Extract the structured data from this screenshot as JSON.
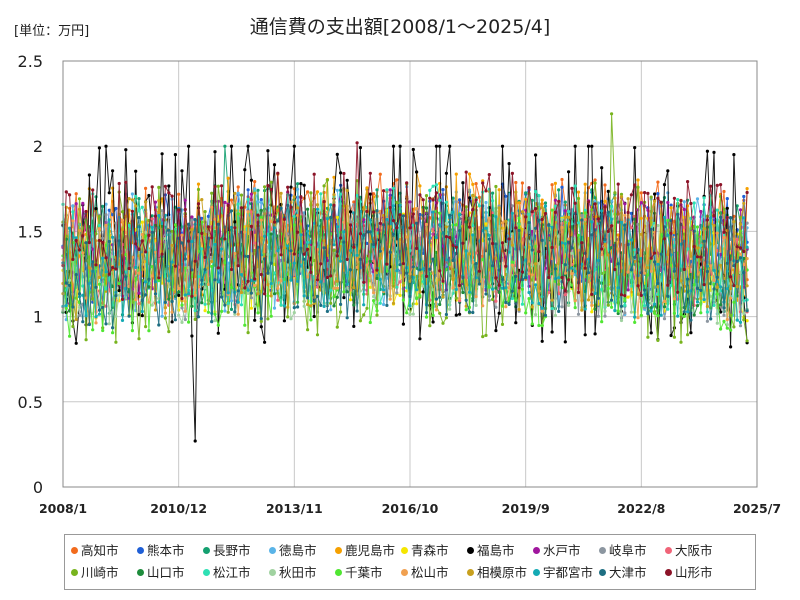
{
  "unit_label": "[単位：万円]",
  "chart_data": {
    "type": "line",
    "title": "通信費の支出額[2008/1～2025/4]",
    "xlabel": "",
    "ylabel": "",
    "x_tick_labels": [
      "2008/1",
      "2010/12",
      "2013/11",
      "2016/10",
      "2019/9",
      "2022/8",
      "2025/7"
    ],
    "y_ticks": [
      0,
      0.5,
      1,
      1.5,
      2,
      2.5
    ],
    "ylim": [
      0,
      2.5
    ],
    "x_range": [
      "2008/1",
      "2025/7"
    ],
    "grid": true,
    "legend_position": "bottom",
    "approximate_series_ranges": [
      {
        "name": "高知市",
        "min": 1.05,
        "max": 1.93,
        "mean": 1.48
      },
      {
        "name": "熊本市",
        "min": 1.0,
        "max": 1.93,
        "mean": 1.42
      },
      {
        "name": "長野市",
        "min": 0.95,
        "max": 2.0,
        "mean": 1.38
      },
      {
        "name": "徳島市",
        "min": 0.9,
        "max": 1.95,
        "mean": 1.36
      },
      {
        "name": "鹿児島市",
        "min": 1.0,
        "max": 2.0,
        "mean": 1.45
      },
      {
        "name": "青森市",
        "min": 0.95,
        "max": 1.8,
        "mean": 1.3
      },
      {
        "name": "福島市",
        "min": 0.27,
        "max": 2.0,
        "mean": 1.42
      },
      {
        "name": "水戸市",
        "min": 1.0,
        "max": 1.85,
        "mean": 1.4
      },
      {
        "name": "岐阜市",
        "min": 0.85,
        "max": 1.8,
        "mean": 1.3
      },
      {
        "name": "大阪市",
        "min": 1.0,
        "max": 1.8,
        "mean": 1.32
      },
      {
        "name": "川崎市",
        "min": 0.85,
        "max": 2.19,
        "mean": 1.3
      },
      {
        "name": "山口市",
        "min": 0.9,
        "max": 1.75,
        "mean": 1.3
      },
      {
        "name": "松江市",
        "min": 0.95,
        "max": 2.0,
        "mean": 1.38
      },
      {
        "name": "秋田市",
        "min": 0.82,
        "max": 1.7,
        "mean": 1.25
      },
      {
        "name": "千葉市",
        "min": 0.8,
        "max": 1.8,
        "mean": 1.25
      },
      {
        "name": "松山市",
        "min": 0.83,
        "max": 1.75,
        "mean": 1.3
      },
      {
        "name": "相模原市",
        "min": 0.9,
        "max": 1.9,
        "mean": 1.35
      },
      {
        "name": "宇都宮市",
        "min": 0.85,
        "max": 1.75,
        "mean": 1.3
      },
      {
        "name": "大津市",
        "min": 0.74,
        "max": 1.7,
        "mean": 1.28
      },
      {
        "name": "山形市",
        "min": 1.0,
        "max": 2.02,
        "mean": 1.45
      }
    ],
    "notable_points": [
      {
        "series": "福島市",
        "x": "2011/5",
        "y": 0.27
      },
      {
        "series": "川崎市",
        "x": "2021/11",
        "y": 2.19
      },
      {
        "series": "長野市",
        "x": "2012/2",
        "y": 2.0
      },
      {
        "series": "山形市",
        "x": "2015/6",
        "y": 2.02
      }
    ],
    "series": [
      {
        "name": "高知市",
        "color": "#f26b1d"
      },
      {
        "name": "熊本市",
        "color": "#1f5fd6"
      },
      {
        "name": "長野市",
        "color": "#14a070"
      },
      {
        "name": "徳島市",
        "color": "#5ab4e8"
      },
      {
        "name": "鹿児島市",
        "color": "#f5a000"
      },
      {
        "name": "青森市",
        "color": "#f5e600"
      },
      {
        "name": "福島市",
        "color": "#000000"
      },
      {
        "name": "水戸市",
        "color": "#a0169e"
      },
      {
        "name": "岐阜市",
        "color": "#8c96a0"
      },
      {
        "name": "大阪市",
        "color": "#f06478"
      },
      {
        "name": "川崎市",
        "color": "#78b41e"
      },
      {
        "name": "山口市",
        "color": "#1e8c3c"
      },
      {
        "name": "松江市",
        "color": "#2ee0b4"
      },
      {
        "name": "秋田市",
        "color": "#a0d2a0"
      },
      {
        "name": "千葉市",
        "color": "#50e632"
      },
      {
        "name": "松山市",
        "color": "#f0a050"
      },
      {
        "name": "相模原市",
        "color": "#c8a01e"
      },
      {
        "name": "宇都宮市",
        "color": "#14aab4"
      },
      {
        "name": "大津市",
        "color": "#1e6e82"
      },
      {
        "name": "山形市",
        "color": "#8c1428"
      }
    ]
  }
}
